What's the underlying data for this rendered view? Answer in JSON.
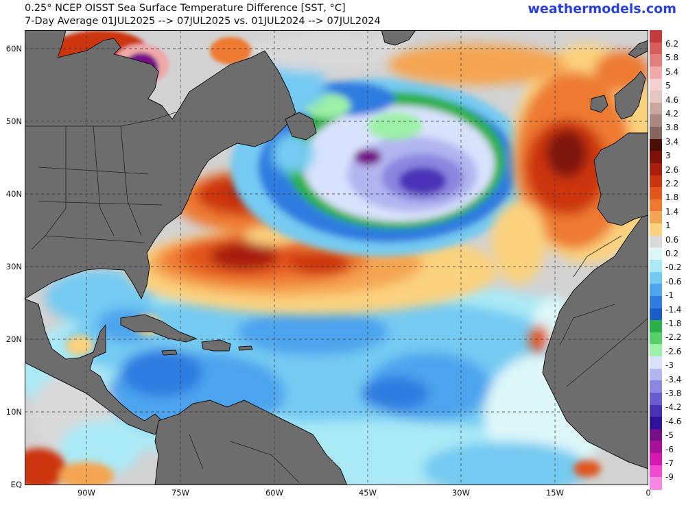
{
  "header": {
    "title_line1": "0.25° NCEP OISST Sea Surface Temperature Difference [SST, °C]",
    "title_line2": "7-Day Average 01JUL2025 --> 07JUL2025  vs. 01JUL2024 --> 07JUL2024",
    "brand": "weathermodels.com"
  },
  "map": {
    "lat_labels": [
      "60N",
      "50N",
      "40N",
      "30N",
      "20N",
      "10N",
      "EQ"
    ],
    "lon_labels": [
      "90W",
      "75W",
      "60W",
      "45W",
      "30W",
      "15W",
      "0"
    ],
    "land_color": "#6d6d6d",
    "border_color": "#111111",
    "grid_style": "dashed"
  },
  "colorbar": {
    "labels": [
      "6.2",
      "5.8",
      "5.4",
      "5",
      "4.6",
      "4.2",
      "3.8",
      "3.4",
      "3",
      "2.6",
      "2.2",
      "1.8",
      "1.4",
      "1",
      "0.6",
      "0.2",
      "-0.2",
      "-0.6",
      "-1",
      "-1.4",
      "-1.8",
      "-2.2",
      "-2.6",
      "-3",
      "-3.4",
      "-3.8",
      "-4.2",
      "-4.6",
      "-5",
      "-6",
      "-7",
      "-9"
    ],
    "colors": [
      "#c43a3a",
      "#d75c5c",
      "#e47f7f",
      "#f0a8a8",
      "#f6d0d0",
      "#e2c6c0",
      "#c9a69e",
      "#a8877f",
      "#85655d",
      "#4a0e06",
      "#7e1208",
      "#a81d0b",
      "#cc3410",
      "#e2551b",
      "#ee7a30",
      "#f5a551",
      "#fbd27e",
      "#d9d9d9",
      "#ddf7f8",
      "#aaeaf6",
      "#74cbf2",
      "#4ea4ee",
      "#2f7be0",
      "#1a5cc8",
      "#2ab04a",
      "#58d068",
      "#9cf0a6",
      "#d8e2fc",
      "#b2b6f0",
      "#8c86e0",
      "#6a5cd0",
      "#4a32b8",
      "#2e109a",
      "#76108a",
      "#a8109c",
      "#d618b2",
      "#f04ad2",
      "#f688e4"
    ]
  }
}
